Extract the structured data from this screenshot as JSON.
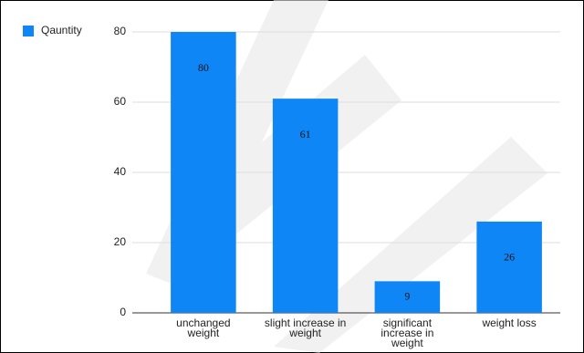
{
  "chart_data": {
    "type": "bar",
    "categories": [
      "unchanged weight",
      "slight increase in weight",
      "significant increase in weight",
      "weight loss"
    ],
    "series": [
      {
        "name": "Qauntity",
        "color": "#0f86f5",
        "values": [
          80,
          61,
          9,
          26
        ]
      }
    ],
    "ylim": [
      0,
      80
    ],
    "yticks": [
      0,
      20,
      40,
      60,
      80
    ],
    "grid": true,
    "legend": "top-left"
  }
}
